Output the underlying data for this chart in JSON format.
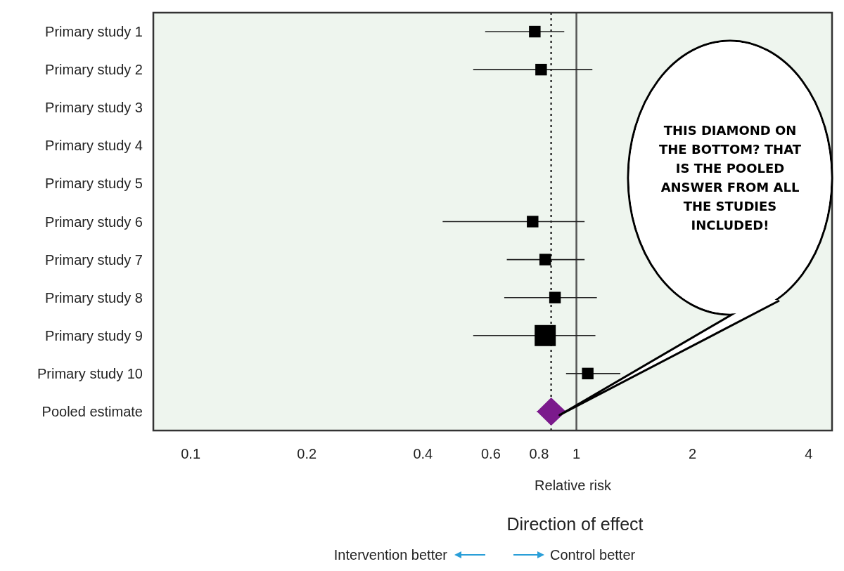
{
  "chart_data": {
    "type": "scatter",
    "orientation": "horizontal",
    "categories": [
      "Primary study 1",
      "Primary study 2",
      "Primary study 3",
      "Primary study 4",
      "Primary study 5",
      "Primary study 6",
      "Primary study 7",
      "Primary study 8",
      "Primary study 9",
      "Primary study 10",
      "Pooled estimate"
    ],
    "xlabel": "Relative risk",
    "log": "x",
    "xlim": [
      0.08,
      4.6
    ],
    "xticks": [
      0.1,
      0.2,
      0.4,
      0.6,
      0.8,
      1,
      2,
      4
    ],
    "grid": false,
    "series": [
      {
        "color": "#000000",
        "marker": "square",
        "values": [
          0.78,
          0.81,
          null,
          null,
          null,
          0.77,
          0.83,
          0.88,
          0.83,
          1.07,
          null
        ],
        "errors": [
          [
            0.58,
            0.93
          ],
          [
            0.54,
            1.1
          ],
          null,
          null,
          null,
          [
            0.45,
            1.05
          ],
          [
            0.66,
            1.05
          ],
          [
            0.65,
            1.13
          ],
          [
            0.54,
            1.12
          ],
          [
            0.94,
            1.3
          ],
          null
        ],
        "sizes": [
          0.3,
          0.3,
          null,
          null,
          null,
          0.3,
          0.3,
          0.3,
          1,
          0.3,
          null
        ]
      },
      {
        "color": "#7b1a8c",
        "marker": "diamond",
        "values": [
          null,
          null,
          null,
          null,
          null,
          null,
          null,
          null,
          null,
          null,
          0.86
        ],
        "errors": [
          null,
          null,
          null,
          null,
          null,
          null,
          null,
          null,
          null,
          null,
          [
            0.79,
            0.94
          ]
        ]
      }
    ],
    "ref_lines": [
      {
        "axis": "x",
        "value": 0.86,
        "line_style": "dotted",
        "color": "#333333"
      },
      {
        "axis": "x",
        "value": 1,
        "line_style": "solid",
        "color": "#555555"
      }
    ],
    "annotations": [
      "THIS DIAMOND ON THE BOTTOM? THAT IS THE POOLED ANSWER FROM ALL THE STUDIES INCLUDED!",
      "Direction of effect",
      "Intervention better",
      "Control better"
    ]
  }
}
